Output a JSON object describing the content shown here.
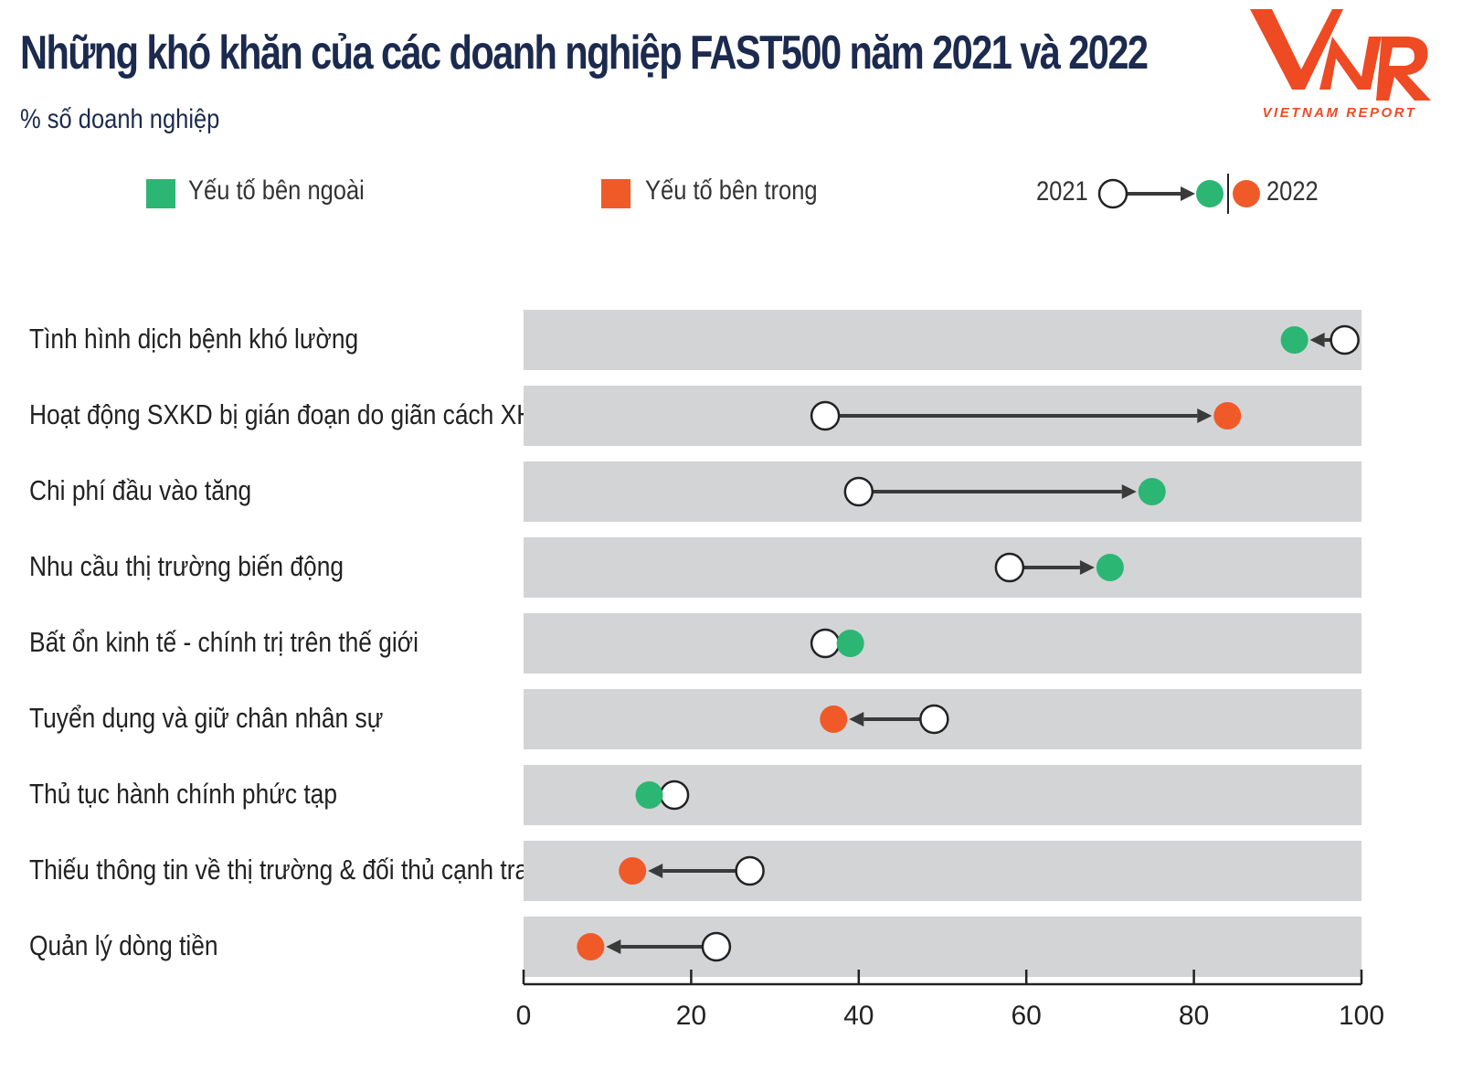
{
  "header": {
    "title": "Những khó khăn của các  doanh nghiệp FAST500 năm 2021 và 2022",
    "subtitle": "% số doanh nghiệp"
  },
  "logo": {
    "text": "VIETNAM REPORT",
    "mark": "VNR",
    "color": "#ee4a23"
  },
  "legend": {
    "external_label": "Yếu tố bên ngoài",
    "internal_label": "Yếu tố bên trong",
    "year_from": "2021",
    "year_to": "2022"
  },
  "colors": {
    "external": "#2bb673",
    "internal": "#f05a28",
    "band": "#d3d4d6",
    "arrow": "#3a3a3a",
    "text": "#1b2a4e"
  },
  "chart_data": {
    "type": "dumbbell",
    "xlim": [
      0,
      100
    ],
    "xticks": [
      0,
      20,
      40,
      60,
      80,
      100
    ],
    "categories": [
      "Tình hình dịch bệnh khó lường",
      "Hoạt động SXKD bị gián đoạn do giãn cách XH",
      "Chi phí đầu vào tăng",
      "Nhu cầu thị trường biến động",
      "Bất ổn kinh tế - chính trị trên thế giới",
      "Tuyển dụng và giữ chân nhân sự",
      "Thủ tục hành chính phức tạp",
      "Thiếu thông tin về thị trường & đối thủ cạnh tranh",
      "Quản lý dòng tiền"
    ],
    "series": [
      {
        "name": "2021",
        "values": [
          98,
          36,
          40,
          58,
          36,
          49,
          18,
          27,
          23
        ]
      },
      {
        "name": "2022",
        "values": [
          92,
          84,
          75,
          70,
          39,
          37,
          15,
          13,
          8
        ]
      }
    ],
    "factor_type": [
      "external",
      "internal",
      "external",
      "external",
      "external",
      "internal",
      "external",
      "internal",
      "internal"
    ]
  }
}
